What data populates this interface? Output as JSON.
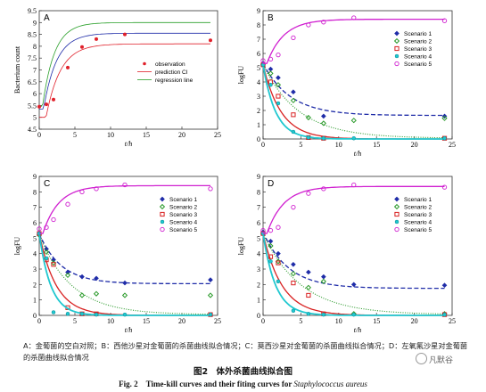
{
  "caption_cn": "A：金葡菌的空白对照；B：西他沙星对金葡菌的杀菌曲线拟合情况；C：莫西沙星对金葡菌的杀菌曲线拟合情况；D：左氧氟沙星对金葡菌的杀菌曲线拟合情况",
  "figure_title_cn": "图2　体外杀菌曲线拟合图",
  "figure_title_en_prefix": "Fig. 2　Time-kill curves and their fiting curves for ",
  "figure_title_en_species": "Staphylococcus aureus",
  "watermark": "凡默谷",
  "colors": {
    "observation": "#e0202a",
    "prediction_ci": "#e0202a",
    "regression": "#2aa02a",
    "s1": "#1f2ca8",
    "s2": "#2a9a2a",
    "s3": "#d82020",
    "s4": "#20c8d0",
    "s5": "#d020d0"
  },
  "chart_data": [
    {
      "panel": "A",
      "type": "line",
      "xlabel": "t/h",
      "ylabel": "Bacterium count",
      "xlim": [
        0,
        25
      ],
      "ylim": [
        4.5,
        9.5
      ],
      "xticks": [
        0,
        5,
        10,
        15,
        20,
        25
      ],
      "yticks": [
        4.5,
        5,
        5.5,
        6,
        6.5,
        7,
        7.5,
        8,
        8.5,
        9,
        9.5
      ],
      "legend": [
        "observation",
        "prediction CI",
        "regression line"
      ],
      "observation": {
        "x": [
          0,
          1,
          2,
          4,
          6,
          8,
          12,
          24
        ],
        "y": [
          5.45,
          5.55,
          5.75,
          7.1,
          7.97,
          8.3,
          8.5,
          8.25
        ]
      },
      "fit": {
        "y0": 5.35,
        "ymax": 8.55,
        "k": 0.55,
        "lag": 0.6
      },
      "upper": {
        "y0": 5.45,
        "ymax": 9.0,
        "k": 0.6,
        "lag": 0.45
      },
      "lower": {
        "y0": 5.0,
        "ymax": 8.1,
        "k": 0.5,
        "lag": 0.95
      }
    },
    {
      "panel": "B",
      "type": "scatter",
      "xlabel": "t/h",
      "ylabel": "logFU",
      "xlim": [
        0,
        25
      ],
      "ylim": [
        0,
        9
      ],
      "xticks": [
        0,
        5,
        10,
        15,
        20,
        25
      ],
      "yticks": [
        0,
        1,
        2,
        3,
        4,
        5,
        6,
        7,
        8,
        9
      ],
      "series": [
        {
          "name": "Scenario 1",
          "marker": "diamond",
          "x": [
            0,
            1,
            2,
            4,
            8,
            24
          ],
          "y": [
            5.3,
            4.9,
            4.3,
            3.3,
            1.6,
            1.6
          ],
          "fit": {
            "y0": 5.3,
            "yend": 1.65,
            "k": 0.28
          }
        },
        {
          "name": "Scenario 2",
          "marker": "diamond-open",
          "x": [
            0,
            1,
            2,
            4,
            6,
            8,
            12,
            24
          ],
          "y": [
            5.2,
            4.6,
            3.8,
            2.7,
            1.5,
            1.1,
            1.3,
            1.45
          ],
          "fit": {
            "y0": 5.2,
            "yend": 0.05,
            "k": 0.21
          }
        },
        {
          "name": "Scenario 3",
          "marker": "square",
          "x": [
            0,
            1,
            2,
            4,
            6,
            8,
            24
          ],
          "y": [
            5.2,
            4.0,
            3.0,
            1.7,
            0.1,
            0.05,
            0.05
          ],
          "fit": {
            "y0": 5.2,
            "yend": 0.0,
            "k": 0.42
          }
        },
        {
          "name": "Scenario 4",
          "marker": "circle-filled",
          "x": [
            0,
            1,
            2,
            4,
            6,
            8,
            12,
            24
          ],
          "y": [
            5.2,
            3.8,
            2.5,
            0.5,
            0.1,
            0.05,
            0.05,
            0.05
          ],
          "fit": {
            "y0": 5.2,
            "yend": 0.0,
            "k": 0.6
          }
        },
        {
          "name": "Scenario 5",
          "marker": "circle-open",
          "x": [
            0,
            1,
            2,
            4,
            6,
            8,
            12,
            24
          ],
          "y": [
            5.5,
            5.6,
            5.9,
            7.1,
            8.0,
            8.2,
            8.5,
            8.3
          ],
          "fit": {
            "y0": 5.3,
            "ymax": 8.4,
            "k": 0.45,
            "lag": 0.5
          }
        }
      ]
    },
    {
      "panel": "C",
      "type": "scatter",
      "xlabel": "t/h",
      "ylabel": "logFU",
      "xlim": [
        0,
        25
      ],
      "ylim": [
        0,
        9
      ],
      "xticks": [
        0,
        5,
        10,
        15,
        20,
        25
      ],
      "yticks": [
        0,
        1,
        2,
        3,
        4,
        5,
        6,
        7,
        8,
        9
      ],
      "series": [
        {
          "name": "Scenario 1",
          "marker": "diamond",
          "x": [
            0,
            1,
            2,
            4,
            6,
            8,
            12,
            24
          ],
          "y": [
            5.3,
            4.3,
            3.6,
            2.8,
            2.5,
            2.4,
            2.1,
            2.3
          ],
          "fit": {
            "y0": 5.3,
            "yend": 2.05,
            "k": 0.33
          }
        },
        {
          "name": "Scenario 2",
          "marker": "diamond-open",
          "x": [
            0,
            1,
            2,
            4,
            6,
            8,
            12,
            24
          ],
          "y": [
            5.2,
            4.1,
            3.4,
            2.6,
            1.3,
            1.4,
            1.3,
            1.3
          ],
          "fit": {
            "y0": 5.2,
            "yend": 0.05,
            "k": 0.22
          }
        },
        {
          "name": "Scenario 3",
          "marker": "square",
          "x": [
            0,
            1,
            2,
            4,
            6,
            8,
            24
          ],
          "y": [
            5.3,
            3.6,
            3.3,
            0.5,
            0.1,
            0.1,
            0.05
          ],
          "fit": {
            "y0": 5.3,
            "yend": 0.0,
            "k": 0.42
          }
        },
        {
          "name": "Scenario 4",
          "marker": "circle-filled",
          "x": [
            0,
            1,
            2,
            4,
            6,
            8,
            12,
            24
          ],
          "y": [
            5.3,
            3.7,
            0.2,
            0.1,
            0.1,
            0.05,
            0.05,
            0.05
          ],
          "fit": {
            "y0": 5.3,
            "yend": 0.0,
            "k": 0.62
          }
        },
        {
          "name": "Scenario 5",
          "marker": "circle-open",
          "x": [
            0,
            1,
            2,
            4,
            6,
            8,
            12,
            24
          ],
          "y": [
            5.6,
            5.7,
            6.2,
            7.2,
            8.0,
            8.2,
            8.45,
            8.2
          ],
          "fit": {
            "y0": 5.3,
            "ymax": 8.4,
            "k": 0.45,
            "lag": 0.5
          }
        }
      ]
    },
    {
      "panel": "D",
      "type": "scatter",
      "xlabel": "t/h",
      "ylabel": "logFU",
      "xlim": [
        0,
        25
      ],
      "ylim": [
        0,
        9
      ],
      "xticks": [
        0,
        5,
        10,
        15,
        20,
        25
      ],
      "yticks": [
        0,
        1,
        2,
        3,
        4,
        5,
        6,
        7,
        8,
        9
      ],
      "series": [
        {
          "name": "Scenario 1",
          "marker": "diamond",
          "x": [
            0,
            1,
            2,
            4,
            6,
            8,
            12,
            24
          ],
          "y": [
            5.4,
            4.8,
            4.0,
            3.3,
            2.8,
            2.5,
            2.0,
            1.95
          ],
          "fit": {
            "y0": 5.4,
            "yend": 1.75,
            "k": 0.3
          }
        },
        {
          "name": "Scenario 2",
          "marker": "diamond-open",
          "x": [
            0,
            1,
            2,
            4,
            6,
            8,
            12,
            24
          ],
          "y": [
            5.3,
            4.5,
            3.5,
            2.7,
            1.8,
            2.2,
            0.1,
            0.1
          ],
          "fit": {
            "y0": 5.3,
            "yend": 0.05,
            "k": 0.2
          }
        },
        {
          "name": "Scenario 3",
          "marker": "square",
          "x": [
            0,
            1,
            2,
            4,
            6,
            8,
            24
          ],
          "y": [
            5.3,
            3.8,
            3.4,
            2.1,
            1.3,
            0.1,
            0.05
          ],
          "fit": {
            "y0": 5.3,
            "yend": 0.0,
            "k": 0.4
          }
        },
        {
          "name": "Scenario 4",
          "marker": "circle-filled",
          "x": [
            0,
            1,
            2,
            4,
            6,
            8,
            12,
            24
          ],
          "y": [
            5.3,
            3.5,
            2.2,
            0.3,
            0.1,
            0.05,
            0.05,
            0.05
          ],
          "fit": {
            "y0": 5.3,
            "yend": 0.0,
            "k": 0.6
          }
        },
        {
          "name": "Scenario 5",
          "marker": "circle-open",
          "x": [
            0,
            1,
            2,
            4,
            6,
            8,
            12,
            24
          ],
          "y": [
            5.5,
            5.5,
            5.7,
            7.0,
            7.9,
            8.2,
            8.45,
            8.3
          ],
          "fit": {
            "y0": 5.3,
            "ymax": 8.35,
            "k": 0.45,
            "lag": 0.5
          }
        }
      ]
    }
  ]
}
